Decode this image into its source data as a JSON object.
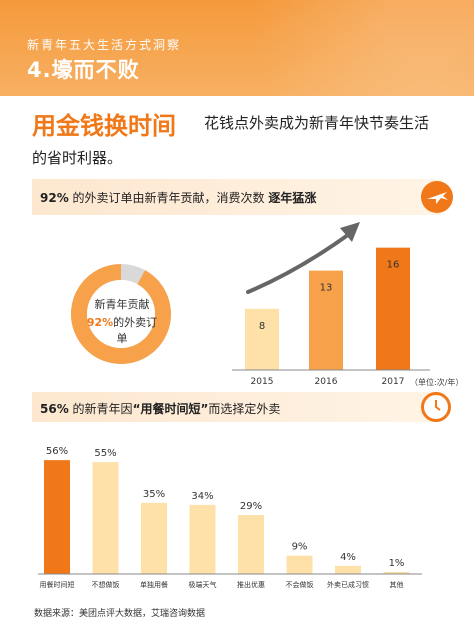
{
  "header": {
    "subtitle": "新青年五大生活方式洞察",
    "title": "4.壕而不败"
  },
  "headline": {
    "main": "用金钱换时间",
    "rest_line1": "花钱点外卖成为新青年快节奏生活",
    "rest_line2": "的省时利器。"
  },
  "section1": {
    "pct": "92%",
    "text_mid": " 的外卖订单由新青年贡献，消费次数 ",
    "text_bold": "逐年猛涨"
  },
  "donut": {
    "label_top": "新青年贡献",
    "label_pct": "92%",
    "label_rest": "的外卖订单",
    "share": 0.92
  },
  "section2": {
    "pct": "56%",
    "text_a": " 的新青年因",
    "text_quote": "“用餐时间短”",
    "text_b": "而选择定外卖"
  },
  "unit_note": "（单位:次/年）",
  "source": "数据来源：美团点评大数据，艾瑞咨询数据",
  "colors": {
    "accent": "#f07818",
    "light": "#fde1a8",
    "orange_mid": "#f7a24a",
    "gray": "#d9d9d9"
  },
  "chart_data": [
    {
      "type": "bar",
      "categories": [
        "2015",
        "2016",
        "2017"
      ],
      "values": [
        8,
        13,
        16
      ],
      "data_labels": [
        "8",
        "13",
        "16"
      ],
      "ylim": [
        0,
        17
      ],
      "unit": "次/年",
      "grid": false
    },
    {
      "type": "bar",
      "categories": [
        "用餐时间短",
        "不想做饭",
        "单独用餐",
        "极端天气",
        "推出优惠",
        "不会做饭",
        "外卖已成习惯",
        "其他"
      ],
      "values": [
        56,
        55,
        35,
        34,
        29,
        9,
        4,
        1
      ],
      "data_labels": [
        "56%",
        "55%",
        "35%",
        "34%",
        "29%",
        "9%",
        "4%",
        "1%"
      ],
      "ylim": [
        0,
        60
      ],
      "grid": false
    }
  ]
}
